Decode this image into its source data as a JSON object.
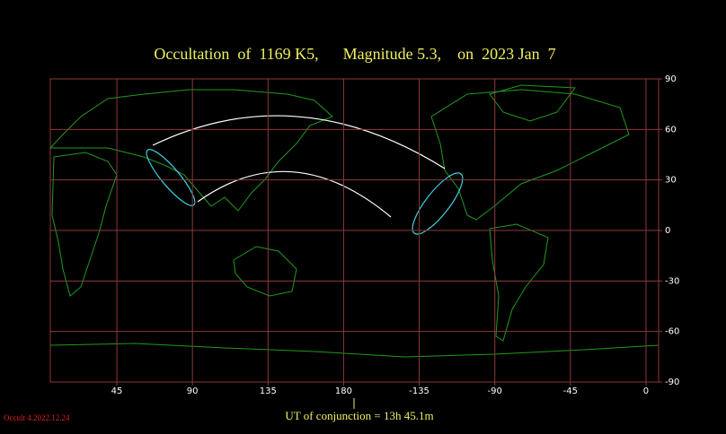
{
  "chart_data": {
    "type": "map",
    "title": "Occultation  of  1169 K5,      Magnitude 5.3,    on  2023 Jan  7",
    "xlim": [
      5.4,
      367.5
    ],
    "xticks": [
      45,
      90,
      135,
      180,
      {
        "value": 225,
        "label": "-135"
      },
      {
        "value": 270,
        "label": "-90"
      },
      {
        "value": 315,
        "label": "-45"
      },
      {
        "value": 360,
        "label": "0"
      }
    ],
    "ylim": [
      -90,
      90
    ],
    "yticks": [
      90,
      60,
      30,
      0,
      -30,
      -60,
      -90
    ],
    "grid": true,
    "grid_color": "#8b3a3a",
    "annotations": [
      "UT of conjunction = 13h 45.1m",
      "Occult 4.2022.12.24"
    ]
  }
}
